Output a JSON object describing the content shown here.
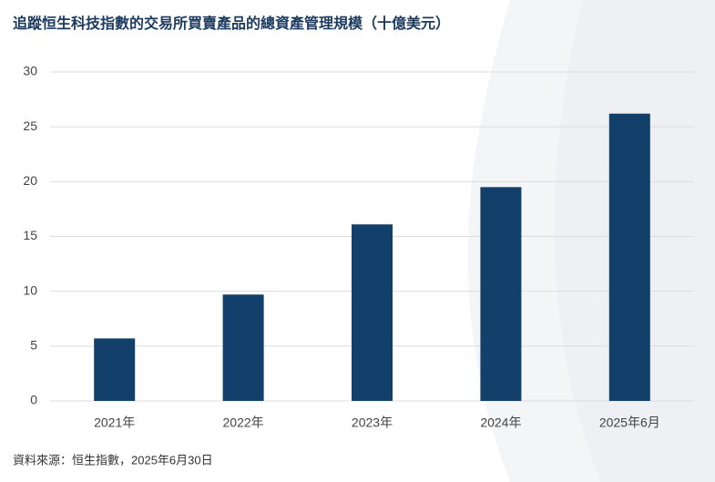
{
  "chart_data": {
    "type": "bar",
    "title": "追蹤恒生科技指數的交易所買賣產品的總資產管理規模（十億美元）",
    "source": "資料來源：恒生指數，2025年6月30日",
    "categories": [
      "2021年",
      "2022年",
      "2023年",
      "2024年",
      "2025年6月"
    ],
    "values": [
      5.7,
      9.7,
      16.1,
      19.5,
      26.2
    ],
    "color": "#13406b",
    "ylim": [
      0,
      30
    ],
    "yticks": [
      0,
      5,
      10,
      15,
      20,
      25,
      30
    ],
    "grid": true
  }
}
